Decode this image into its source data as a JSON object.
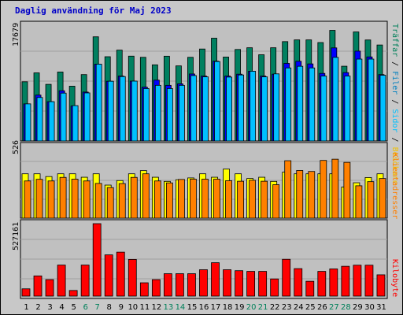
{
  "title": "Daglig användning för Maj 2023",
  "panels": {
    "top": {
      "ymax": "17679",
      "legend": [
        {
          "text": "Träffar",
          "color": "#00805a"
        },
        {
          "text": "Filer",
          "color": "#0080c0"
        },
        {
          "text": "Sidor",
          "color": "#00c0ff"
        },
        {
          "text": "Besökare",
          "color": "#f0c000"
        }
      ]
    },
    "middle": {
      "ymax": "526",
      "legend": [
        {
          "text": "Klientadresser",
          "color": "#ff8000"
        },
        {
          "text": "Besökare",
          "color": "#f0c000"
        }
      ]
    },
    "bottom": {
      "ymax": "527161",
      "legend": [
        {
          "text": "Kilobyte",
          "color": "#ff0000"
        }
      ]
    }
  },
  "chart_data": {
    "type": "bar",
    "categories": [
      "1",
      "2",
      "3",
      "4",
      "5",
      "6",
      "7",
      "8",
      "9",
      "10",
      "11",
      "12",
      "13",
      "14",
      "15",
      "16",
      "17",
      "18",
      "19",
      "20",
      "21",
      "22",
      "23",
      "24",
      "25",
      "26",
      "27",
      "28",
      "29",
      "30",
      "31"
    ],
    "weekend_days": [
      "6",
      "7",
      "13",
      "14",
      "20",
      "21",
      "27",
      "28"
    ],
    "colors": {
      "hits": "#008060",
      "files": "#0000ff",
      "pages": "#00c0ff",
      "visits": "#ffff00",
      "sites": "#ff8000",
      "kbytes": "#ff0000",
      "weekday_label": "#000000",
      "weekend_label": "#00805a"
    },
    "panels": [
      {
        "name": "hits_files_pages",
        "ylim": [
          0,
          17679
        ],
        "series": [
          {
            "name": "Träffar",
            "values": [
              8980,
              10330,
              8590,
              10460,
              8310,
              10070,
              15800,
              12780,
              13780,
              12870,
              12690,
              11550,
              12860,
              11390,
              12690,
              13950,
              15590,
              12730,
              13880,
              14140,
              13080,
              14140,
              15070,
              15330,
              15330,
              14930,
              16780,
              11340,
              16540,
              15320,
              14560
            ]
          },
          {
            "name": "Filer",
            "values": [
              5630,
              6960,
              5960,
              7620,
              5300,
              7420,
              11650,
              9060,
              9850,
              9080,
              8160,
              9230,
              8440,
              8670,
              10160,
              9850,
              12110,
              9850,
              10130,
              10580,
              9850,
              10130,
              11770,
              12090,
              11690,
              10250,
              14120,
              10370,
              13630,
              12750,
              10070
            ]
          },
          {
            "name": "Sidor",
            "values": [
              5630,
              6600,
              5960,
              7260,
              5360,
              7290,
              11650,
              9060,
              9770,
              9080,
              7950,
              8440,
              7950,
              8440,
              9920,
              9730,
              12050,
              9690,
              10010,
              10580,
              9730,
              10180,
              11080,
              11330,
              11080,
              9850,
              12680,
              9850,
              12420,
              12420,
              9970
            ]
          }
        ]
      },
      {
        "name": "visits_sites",
        "ylim": [
          0,
          526
        ],
        "series": [
          {
            "name": "Besökare",
            "values": [
              322,
              322,
              302,
              322,
              322,
              297,
              322,
              240,
              273,
              322,
              345,
              297,
              267,
              279,
              292,
              322,
              297,
              356,
              322,
              288,
              297,
              267,
              334,
              322,
              322,
              322,
              322,
              226,
              257,
              295,
              322
            ]
          },
          {
            "name": "Klientadresser",
            "values": [
              270,
              282,
              270,
              296,
              283,
              270,
              252,
              222,
              251,
              296,
              322,
              270,
              256,
              281,
              283,
              283,
              283,
              272,
              268,
              275,
              268,
              243,
              417,
              346,
              339,
              419,
              428,
              405,
              235,
              265,
              288
            ]
          }
        ]
      },
      {
        "name": "kbytes",
        "ylim": [
          0,
          527161
        ],
        "series": [
          {
            "name": "Kilobyte",
            "values": [
              53000,
              147000,
              120000,
              226000,
              41000,
              226000,
              527161,
              300000,
              320000,
              267000,
              97000,
              120000,
              163000,
              163000,
              163000,
              192000,
              243000,
              192000,
              185000,
              180000,
              180000,
              125000,
              268000,
              200000,
              108000,
              180000,
              198000,
              217000,
              225000,
              225000,
              155000
            ]
          }
        ]
      }
    ]
  }
}
